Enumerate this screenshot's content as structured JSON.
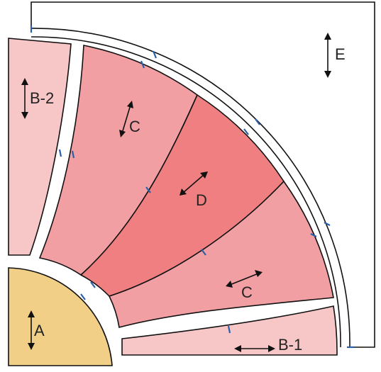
{
  "colors": {
    "A": "#f1cf86",
    "B": "#f7c6c6",
    "C": "#f29fa3",
    "D": "#ef7f80",
    "E": "#ffffff",
    "outline": "#111111",
    "tick": "#2b5fa8"
  },
  "labels": {
    "A": "A",
    "B1": "B-1",
    "B2": "B-2",
    "C1": "C",
    "C2": "C",
    "D": "D",
    "E": "E"
  },
  "icons": [
    "double-arrow-icon"
  ]
}
